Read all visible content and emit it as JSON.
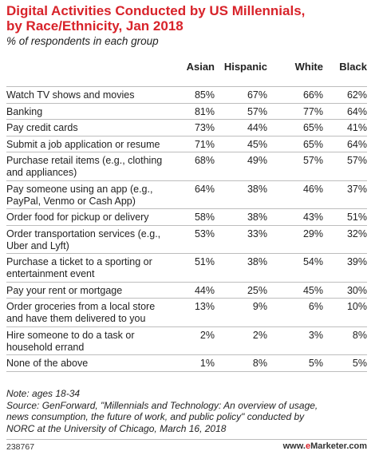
{
  "title_line1": "Digital Activities Conducted by US Millennials,",
  "title_line2": "by Race/Ethnicity, Jan 2018",
  "subtitle": "% of respondents in each group",
  "chart_data": {
    "type": "table",
    "columns": [
      "Asian",
      "Hispanic",
      "White",
      "Black"
    ],
    "rows": [
      {
        "label": [
          "Watch TV shows and movies"
        ],
        "values": [
          "85%",
          "67%",
          "66%",
          "62%"
        ]
      },
      {
        "label": [
          "Banking"
        ],
        "values": [
          "81%",
          "57%",
          "77%",
          "64%"
        ]
      },
      {
        "label": [
          "Pay credit cards"
        ],
        "values": [
          "73%",
          "44%",
          "65%",
          "41%"
        ]
      },
      {
        "label": [
          "Submit a job application or resume"
        ],
        "values": [
          "71%",
          "45%",
          "65%",
          "64%"
        ]
      },
      {
        "label": [
          "Purchase retail items (e.g., clothing",
          "and appliances)"
        ],
        "values": [
          "68%",
          "49%",
          "57%",
          "57%"
        ]
      },
      {
        "label": [
          "Pay someone using an app (e.g.,",
          "PayPal, Venmo or Cash App)"
        ],
        "values": [
          "64%",
          "38%",
          "46%",
          "37%"
        ]
      },
      {
        "label": [
          "Order food for pickup or delivery"
        ],
        "values": [
          "58%",
          "38%",
          "43%",
          "51%"
        ]
      },
      {
        "label": [
          "Order transportation services (e.g.,",
          "Uber and Lyft)"
        ],
        "values": [
          "53%",
          "33%",
          "29%",
          "32%"
        ]
      },
      {
        "label": [
          "Purchase a ticket to a sporting or",
          "entertainment event"
        ],
        "values": [
          "51%",
          "38%",
          "54%",
          "39%"
        ]
      },
      {
        "label": [
          "Pay your rent or mortgage"
        ],
        "values": [
          "44%",
          "25%",
          "45%",
          "30%"
        ]
      },
      {
        "label": [
          "Order groceries from a local store",
          "and have them delivered to you"
        ],
        "values": [
          "13%",
          "9%",
          "6%",
          "10%"
        ]
      },
      {
        "label": [
          "Hire someone to do a task or",
          "household errand"
        ],
        "values": [
          "2%",
          "2%",
          "3%",
          "8%"
        ]
      },
      {
        "label": [
          "None of the above"
        ],
        "values": [
          "1%",
          "8%",
          "5%",
          "5%"
        ]
      }
    ]
  },
  "note_lines": [
    "Note: ages 18-34",
    "Source: GenForward, \"Millennials and Technology: An overview of usage,",
    "news consumption, the future of work, and public policy\" conducted by",
    "NORC at the University of Chicago, March 16, 2018"
  ],
  "footer": {
    "id": "238767",
    "brand_prefix": "www.",
    "brand_e": "e",
    "brand_rest": "Marketer.com"
  }
}
